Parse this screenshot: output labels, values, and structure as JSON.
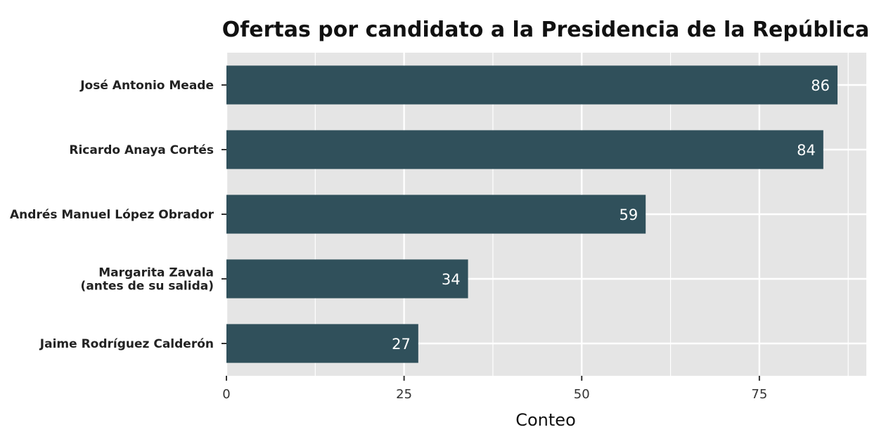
{
  "chart_data": {
    "type": "bar",
    "orientation": "horizontal",
    "title": "Ofertas por candidato a la Presidencia de la República",
    "xlabel": "Conteo",
    "ylabel": "",
    "xlim": [
      0,
      90
    ],
    "x_ticks": [
      0,
      25,
      50,
      75
    ],
    "grid": true,
    "bar_color": "#30505B",
    "panel_color": "#E5E5E5",
    "categories": [
      [
        "José Antonio Meade"
      ],
      [
        "Ricardo Anaya Cortés"
      ],
      [
        "Andrés Manuel López Obrador"
      ],
      [
        "Margarita Zavala",
        "(antes de su salida)"
      ],
      [
        "Jaime Rodríguez Calderón"
      ]
    ],
    "values": [
      86,
      84,
      59,
      34,
      27
    ]
  }
}
